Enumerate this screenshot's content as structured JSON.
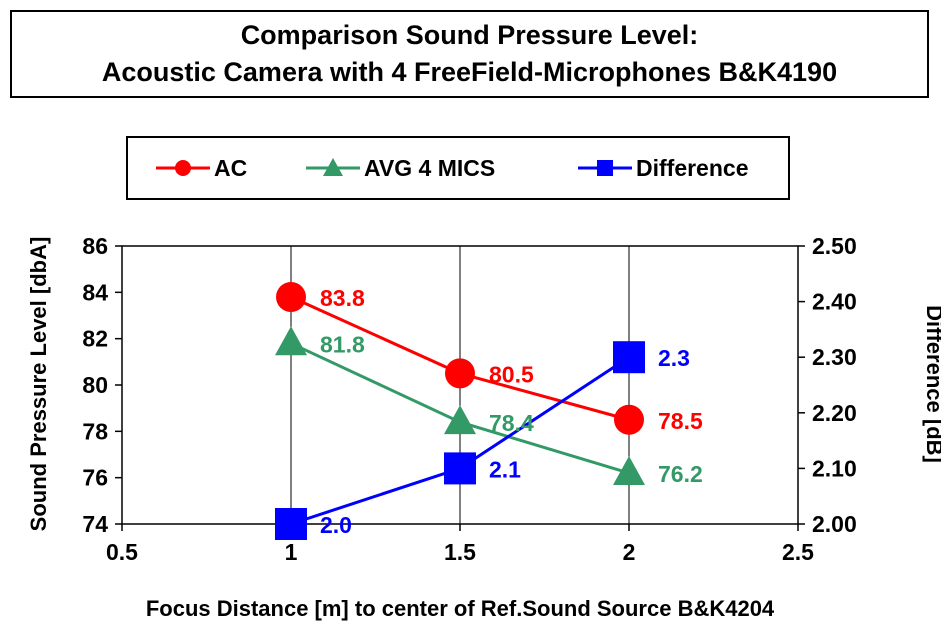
{
  "title": {
    "line1": "Comparison Sound Pressure Level:",
    "line2": "Acoustic Camera with 4 FreeField-Microphones B&K4190"
  },
  "chart_data": {
    "type": "line",
    "xlabel": "Focus Distance [m] to center of Ref.Sound Source B&K4204",
    "ylabel": "Sound Pressure Level [dbA]",
    "y2label": "Difference [dB]",
    "xlim": [
      0.5,
      2.5
    ],
    "ylim": [
      74,
      86
    ],
    "y2lim": [
      2.0,
      2.5
    ],
    "x_ticks": [
      "0.5",
      "1",
      "1.5",
      "2",
      "2.5"
    ],
    "y_ticks": [
      "74",
      "76",
      "78",
      "80",
      "82",
      "84",
      "86"
    ],
    "y2_ticks": [
      "2.00",
      "2.10",
      "2.20",
      "2.30",
      "2.40",
      "2.50"
    ],
    "grid": "vertical",
    "legend_position": "top",
    "x": [
      1,
      1.5,
      2
    ],
    "series": [
      {
        "name": "AC",
        "axis": "left",
        "marker": "circle",
        "color": "#ff0000",
        "values": [
          83.8,
          80.5,
          78.5
        ],
        "labels": [
          "83.8",
          "80.5",
          "78.5"
        ]
      },
      {
        "name": "AVG 4 MICS",
        "axis": "left",
        "marker": "triangle",
        "color": "#339966",
        "values": [
          81.8,
          78.4,
          76.2
        ],
        "labels": [
          "81.8",
          "78.4",
          "76.2"
        ]
      },
      {
        "name": "Difference",
        "axis": "right",
        "marker": "square",
        "color": "#0000ff",
        "values": [
          2.0,
          2.1,
          2.3
        ],
        "labels": [
          "2.0",
          "2.1",
          "2.3"
        ]
      }
    ]
  }
}
